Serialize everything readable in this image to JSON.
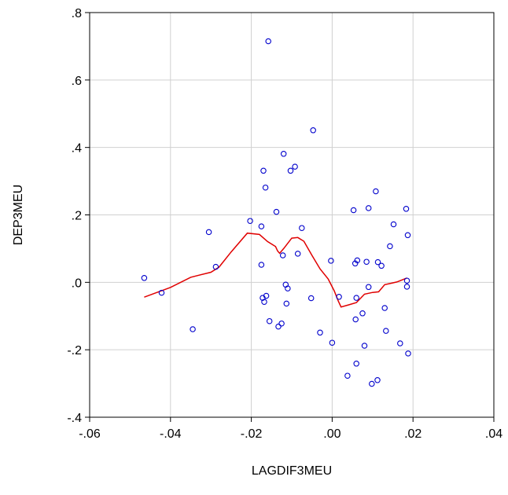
{
  "chart_data": {
    "type": "scatter",
    "title": "",
    "xlabel": "LAGDIF3MEU",
    "ylabel": "DEP3MEU",
    "xlim": [
      -0.06,
      0.04
    ],
    "ylim": [
      -0.4,
      0.8
    ],
    "x_ticks": [
      -0.06,
      -0.04,
      -0.02,
      0.0,
      0.02,
      0.04
    ],
    "x_tick_labels": [
      "-.06",
      "-.04",
      "-.02",
      ".00",
      ".02",
      ".04"
    ],
    "y_ticks": [
      -0.4,
      -0.2,
      0.0,
      0.2,
      0.4,
      0.6,
      0.8
    ],
    "y_tick_labels": [
      "-.4",
      "-.2",
      ".0",
      ".2",
      ".4",
      ".6",
      ".8"
    ],
    "grid": true,
    "colors": {
      "points": "#0000cc",
      "fit_line": "#e00000",
      "grid": "#d0d0d0"
    },
    "series": [
      {
        "type": "scatter",
        "points": [
          [
            -0.0465,
            0.013
          ],
          [
            -0.0422,
            -0.031
          ],
          [
            -0.0345,
            -0.139
          ],
          [
            -0.0305,
            0.149
          ],
          [
            -0.0288,
            0.046
          ],
          [
            -0.0203,
            0.182
          ],
          [
            -0.0175,
            0.052
          ],
          [
            -0.0175,
            0.166
          ],
          [
            -0.0172,
            -0.046
          ],
          [
            -0.017,
            0.331
          ],
          [
            -0.0168,
            -0.058
          ],
          [
            -0.0165,
            0.281
          ],
          [
            -0.0163,
            -0.04
          ],
          [
            -0.0158,
            0.715
          ],
          [
            -0.0155,
            -0.115
          ],
          [
            -0.0138,
            0.209
          ],
          [
            -0.0133,
            -0.131
          ],
          [
            -0.0125,
            -0.122
          ],
          [
            -0.0122,
            0.08
          ],
          [
            -0.012,
            0.381
          ],
          [
            -0.0115,
            -0.007
          ],
          [
            -0.0113,
            -0.063
          ],
          [
            -0.011,
            -0.018
          ],
          [
            -0.0103,
            0.331
          ],
          [
            -0.0092,
            0.343
          ],
          [
            -0.0085,
            0.085
          ],
          [
            -0.0075,
            0.161
          ],
          [
            -0.0052,
            -0.047
          ],
          [
            -0.0047,
            0.451
          ],
          [
            -0.003,
            -0.149
          ],
          [
            -0.0003,
            0.064
          ],
          [
            0.0,
            -0.179
          ],
          [
            0.0017,
            -0.043
          ],
          [
            0.0038,
            -0.277
          ],
          [
            0.0053,
            0.214
          ],
          [
            0.0057,
            0.056
          ],
          [
            0.0058,
            -0.11
          ],
          [
            0.006,
            -0.046
          ],
          [
            0.006,
            -0.241
          ],
          [
            0.0062,
            0.065
          ],
          [
            0.0075,
            -0.092
          ],
          [
            0.008,
            -0.188
          ],
          [
            0.0085,
            0.061
          ],
          [
            0.009,
            -0.014
          ],
          [
            0.009,
            0.22
          ],
          [
            0.0098,
            -0.301
          ],
          [
            0.0108,
            0.27
          ],
          [
            0.0112,
            -0.29
          ],
          [
            0.0113,
            0.06
          ],
          [
            0.0122,
            0.049
          ],
          [
            0.013,
            -0.076
          ],
          [
            0.0133,
            -0.144
          ],
          [
            0.0143,
            0.107
          ],
          [
            0.0152,
            0.172
          ],
          [
            0.0168,
            -0.181
          ],
          [
            0.0183,
            0.218
          ],
          [
            0.0185,
            0.005
          ],
          [
            0.0185,
            -0.013
          ],
          [
            0.0187,
            0.14
          ],
          [
            0.0188,
            -0.211
          ]
        ]
      },
      {
        "type": "line",
        "points": [
          [
            -0.0465,
            -0.044
          ],
          [
            -0.04,
            -0.015
          ],
          [
            -0.035,
            0.015
          ],
          [
            -0.03,
            0.03
          ],
          [
            -0.028,
            0.045
          ],
          [
            -0.025,
            0.09
          ],
          [
            -0.021,
            0.146
          ],
          [
            -0.018,
            0.142
          ],
          [
            -0.016,
            0.121
          ],
          [
            -0.014,
            0.106
          ],
          [
            -0.0135,
            0.093
          ],
          [
            -0.013,
            0.086
          ],
          [
            -0.012,
            0.1
          ],
          [
            -0.01,
            0.131
          ],
          [
            -0.0085,
            0.133
          ],
          [
            -0.007,
            0.122
          ],
          [
            -0.005,
            0.08
          ],
          [
            -0.003,
            0.04
          ],
          [
            -0.001,
            0.01
          ],
          [
            0.0005,
            -0.025
          ],
          [
            0.0015,
            -0.055
          ],
          [
            0.0022,
            -0.073
          ],
          [
            0.004,
            -0.067
          ],
          [
            0.006,
            -0.06
          ],
          [
            0.008,
            -0.035
          ],
          [
            0.01,
            -0.03
          ],
          [
            0.0115,
            -0.028
          ],
          [
            0.013,
            -0.007
          ],
          [
            0.0145,
            -0.003
          ],
          [
            0.016,
            0.001
          ],
          [
            0.0185,
            0.013
          ]
        ]
      }
    ]
  }
}
